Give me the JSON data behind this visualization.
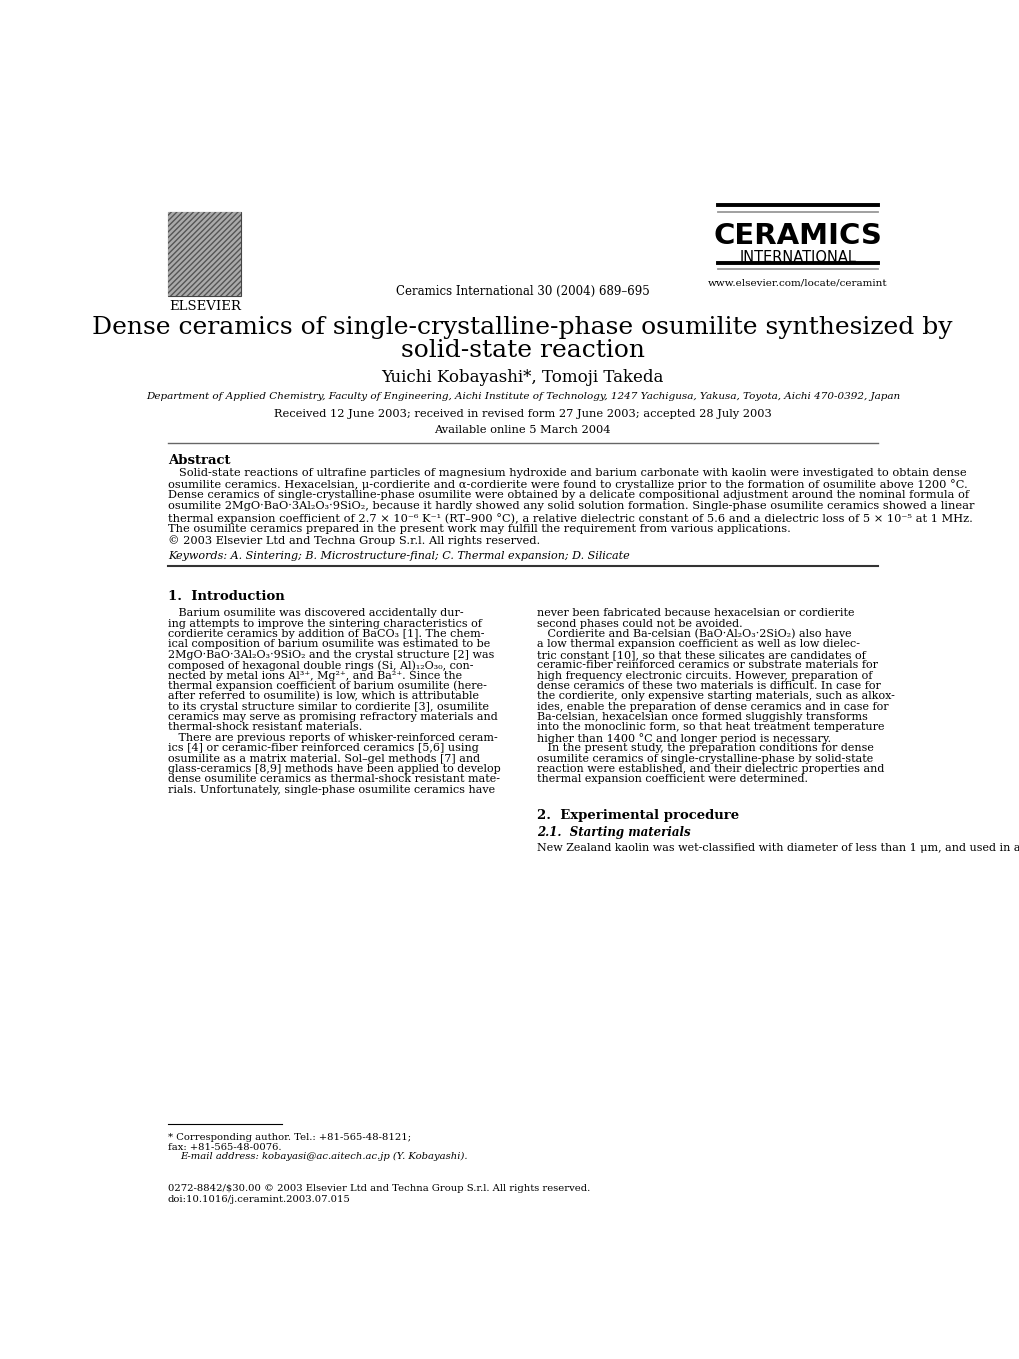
{
  "background_color": "#ffffff",
  "header": {
    "elsevier_text": "ELSEVIER",
    "journal_line": "Ceramics International 30 (2004) 689–695",
    "ceramics_title": "CERAMICS",
    "ceramics_subtitle": "INTERNATIONAL",
    "website": "www.elsevier.com/locate/ceramint"
  },
  "paper_title_line1": "Dense ceramics of single-crystalline-phase osumilite synthesized by",
  "paper_title_line2": "solid-state reaction",
  "authors": "Yuichi Kobayashi*, Tomoji Takeda",
  "affiliation": "Department of Applied Chemistry, Faculty of Engineering, Aichi Institute of Technology, 1247 Yachigusa, Yakusa, Toyota, Aichi 470-0392, Japan",
  "received": "Received 12 June 2003; received in revised form 27 June 2003; accepted 28 July 2003",
  "available": "Available online 5 March 2004",
  "abstract_title": "Abstract",
  "keywords": "Keywords: A. Sintering; B. Microstructure-final; C. Thermal expansion; D. Silicate",
  "section1_title": "1.  Introduction",
  "section2_title": "2.  Experimental procedure",
  "section2_sub": "2.1.  Starting materials",
  "section2_col2": "New Zealand kaolin was wet-classified with diameter of less than 1 μm, and used in a wet state before drying. The",
  "footnote_corresponding": "* Corresponding author. Tel.: +81-565-48-8121;",
  "footnote_fax": "fax: +81-565-48-0076.",
  "footnote_email": "E-mail address: kobayasi@ac.aitech.ac.jp (Y. Kobayashi).",
  "footer_issn": "0272-8842/$30.00 © 2003 Elsevier Ltd and Techna Group S.r.l. All rights reserved.",
  "footer_doi": "doi:10.1016/j.ceramint.2003.07.015",
  "abstract_lines": [
    "   Solid-state reactions of ultrafine particles of magnesium hydroxide and barium carbonate with kaolin were investigated to obtain dense",
    "osumilite ceramics. Hexacelsian, μ-cordierite and α-cordierite were found to crystallize prior to the formation of osumilite above 1200 °C.",
    "Dense ceramics of single-crystalline-phase osumilite were obtained by a delicate compositional adjustment around the nominal formula of",
    "osumilite 2MgO·BaO·3Al₂O₃·9SiO₂, because it hardly showed any solid solution formation. Single-phase osumilite ceramics showed a linear",
    "thermal expansion coefficient of 2.7 × 10⁻⁶ K⁻¹ (RT–900 °C), a relative dielectric constant of 5.6 and a dielectric loss of 5 × 10⁻⁵ at 1 MHz.",
    "The osumilite ceramics prepared in the present work may fulfill the requirement from various applications.",
    "© 2003 Elsevier Ltd and Techna Group S.r.l. All rights reserved."
  ],
  "col1_lines": [
    "   Barium osumilite was discovered accidentally dur-",
    "ing attempts to improve the sintering characteristics of",
    "cordierite ceramics by addition of BaCO₃ [1]. The chem-",
    "ical composition of barium osumilite was estimated to be",
    "2MgO·BaO·3Al₂O₃·9SiO₂ and the crystal structure [2] was",
    "composed of hexagonal double rings (Si, Al)₁₂O₃₀, con-",
    "nected by metal ions Al³⁺, Mg²⁺, and Ba²⁺. Since the",
    "thermal expansion coefficient of barium osumilite (here-",
    "after referred to osumilite) is low, which is attributable",
    "to its crystal structure similar to cordierite [3], osumilite",
    "ceramics may serve as promising refractory materials and",
    "thermal-shock resistant materials.",
    "   There are previous reports of whisker-reinforced ceram-",
    "ics [4] or ceramic-fiber reinforced ceramics [5,6] using",
    "osumilite as a matrix material. Sol–gel methods [7] and",
    "glass-ceramics [8,9] methods have been applied to develop",
    "dense osumilite ceramics as thermal-shock resistant mate-",
    "rials. Unfortunately, single-phase osumilite ceramics have"
  ],
  "col2_lines": [
    "never been fabricated because hexacelsian or cordierite",
    "second phases could not be avoided.",
    "   Cordierite and Ba-celsian (BaO·Al₂O₃·2SiO₂) also have",
    "a low thermal expansion coefficient as well as low dielec-",
    "tric constant [10], so that these silicates are candidates of",
    "ceramic-fiber reinforced ceramics or substrate materials for",
    "high frequency electronic circuits. However, preparation of",
    "dense ceramics of these two materials is difficult. In case for",
    "the cordierite, only expensive starting materials, such as alkox-",
    "ides, enable the preparation of dense ceramics and in case for",
    "Ba-celsian, hexacelsian once formed sluggishly transforms",
    "into the monoclinic form, so that heat treatment temperature",
    "higher than 1400 °C and longer period is necessary.",
    "   In the present study, the preparation conditions for dense",
    "osumilite ceramics of single-crystalline-phase by solid-state",
    "reaction were established, and their dielectric properties and",
    "thermal expansion coefficient were determined."
  ]
}
